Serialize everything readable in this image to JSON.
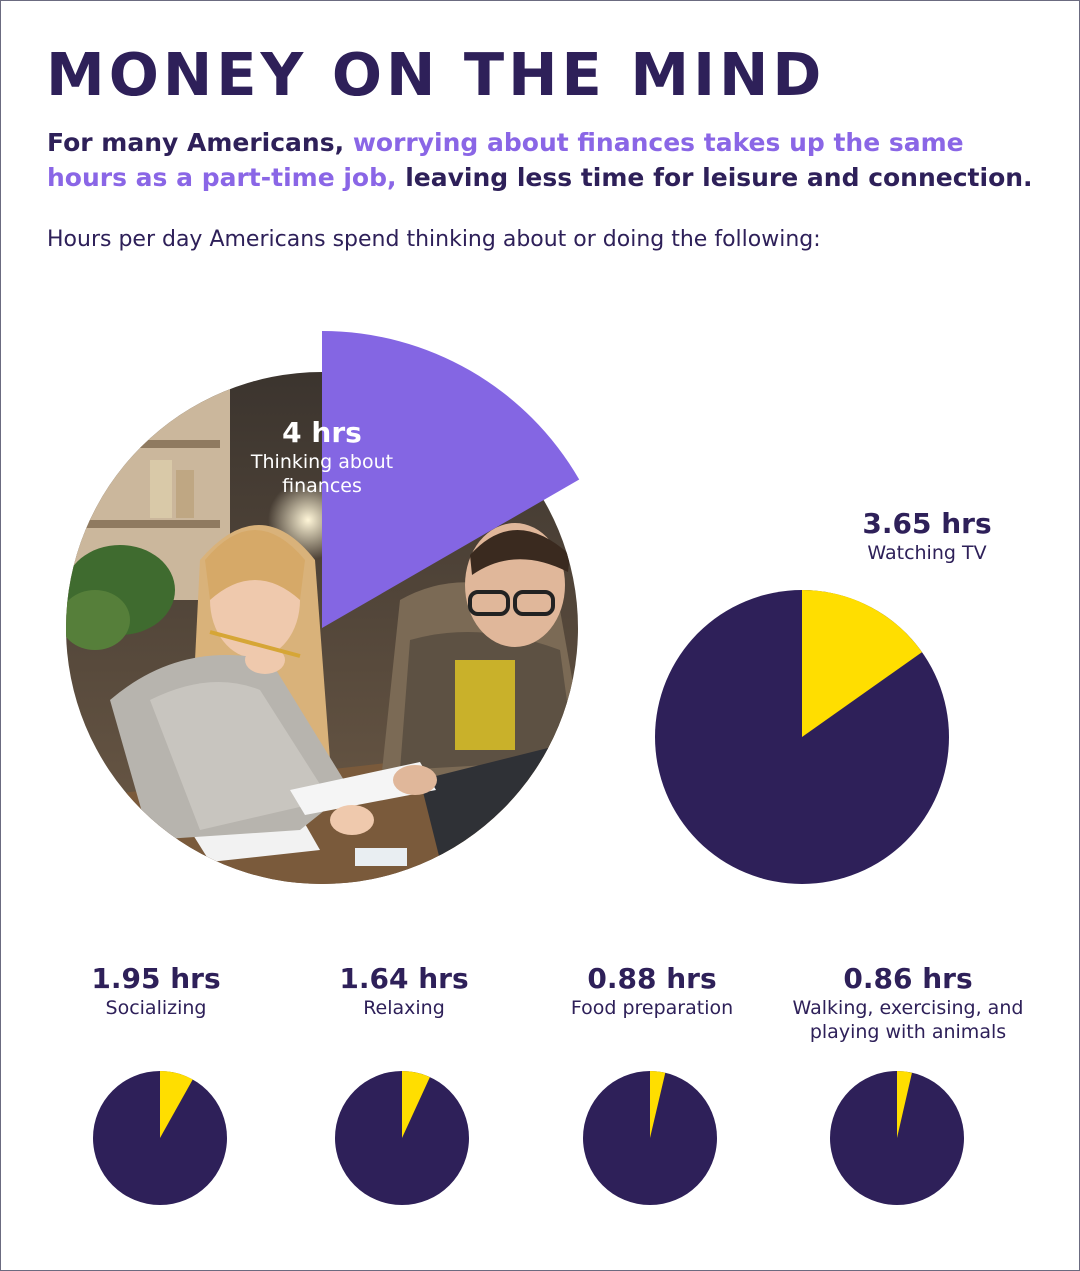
{
  "header": {
    "title": "MONEY ON THE MIND",
    "intro_part1": "For many Americans, ",
    "intro_highlight": "worrying about finances takes up the same hours as a part-time job,",
    "intro_part2": " leaving less time for leisure and connection.",
    "description": "Hours per day Americans spend thinking about or doing the following:"
  },
  "colors": {
    "title": "#2e2059",
    "highlight": "#8a66e6",
    "pie_base": "#2e2059",
    "pie_slice": "#ffde00",
    "finance_slice": "#8466e3"
  },
  "photo": {
    "icon": "couple-reviewing-bills-photo"
  },
  "chart_data": [
    {
      "type": "pie",
      "total_hours": 24,
      "value": 4,
      "value_label": "4 hrs",
      "category": "Thinking about finances",
      "category_lines": [
        "Thinking about",
        "finances"
      ]
    },
    {
      "type": "pie",
      "total_hours": 24,
      "value": 3.65,
      "value_label": "3.65 hrs",
      "category": "Watching TV",
      "category_lines": [
        "Watching TV"
      ]
    },
    {
      "type": "pie",
      "total_hours": 24,
      "value": 1.95,
      "value_label": "1.95 hrs",
      "category": "Socializing",
      "category_lines": [
        "Socializing"
      ]
    },
    {
      "type": "pie",
      "total_hours": 24,
      "value": 1.64,
      "value_label": "1.64 hrs",
      "category": "Relaxing",
      "category_lines": [
        "Relaxing"
      ]
    },
    {
      "type": "pie",
      "total_hours": 24,
      "value": 0.88,
      "value_label": "0.88 hrs",
      "category": "Food preparation",
      "category_lines": [
        "Food preparation"
      ]
    },
    {
      "type": "pie",
      "total_hours": 24,
      "value": 0.86,
      "value_label": "0.86 hrs",
      "category": "Walking, exercising, and playing with animals",
      "category_lines": [
        "Walking, exercising, and",
        "playing with animals"
      ]
    }
  ]
}
